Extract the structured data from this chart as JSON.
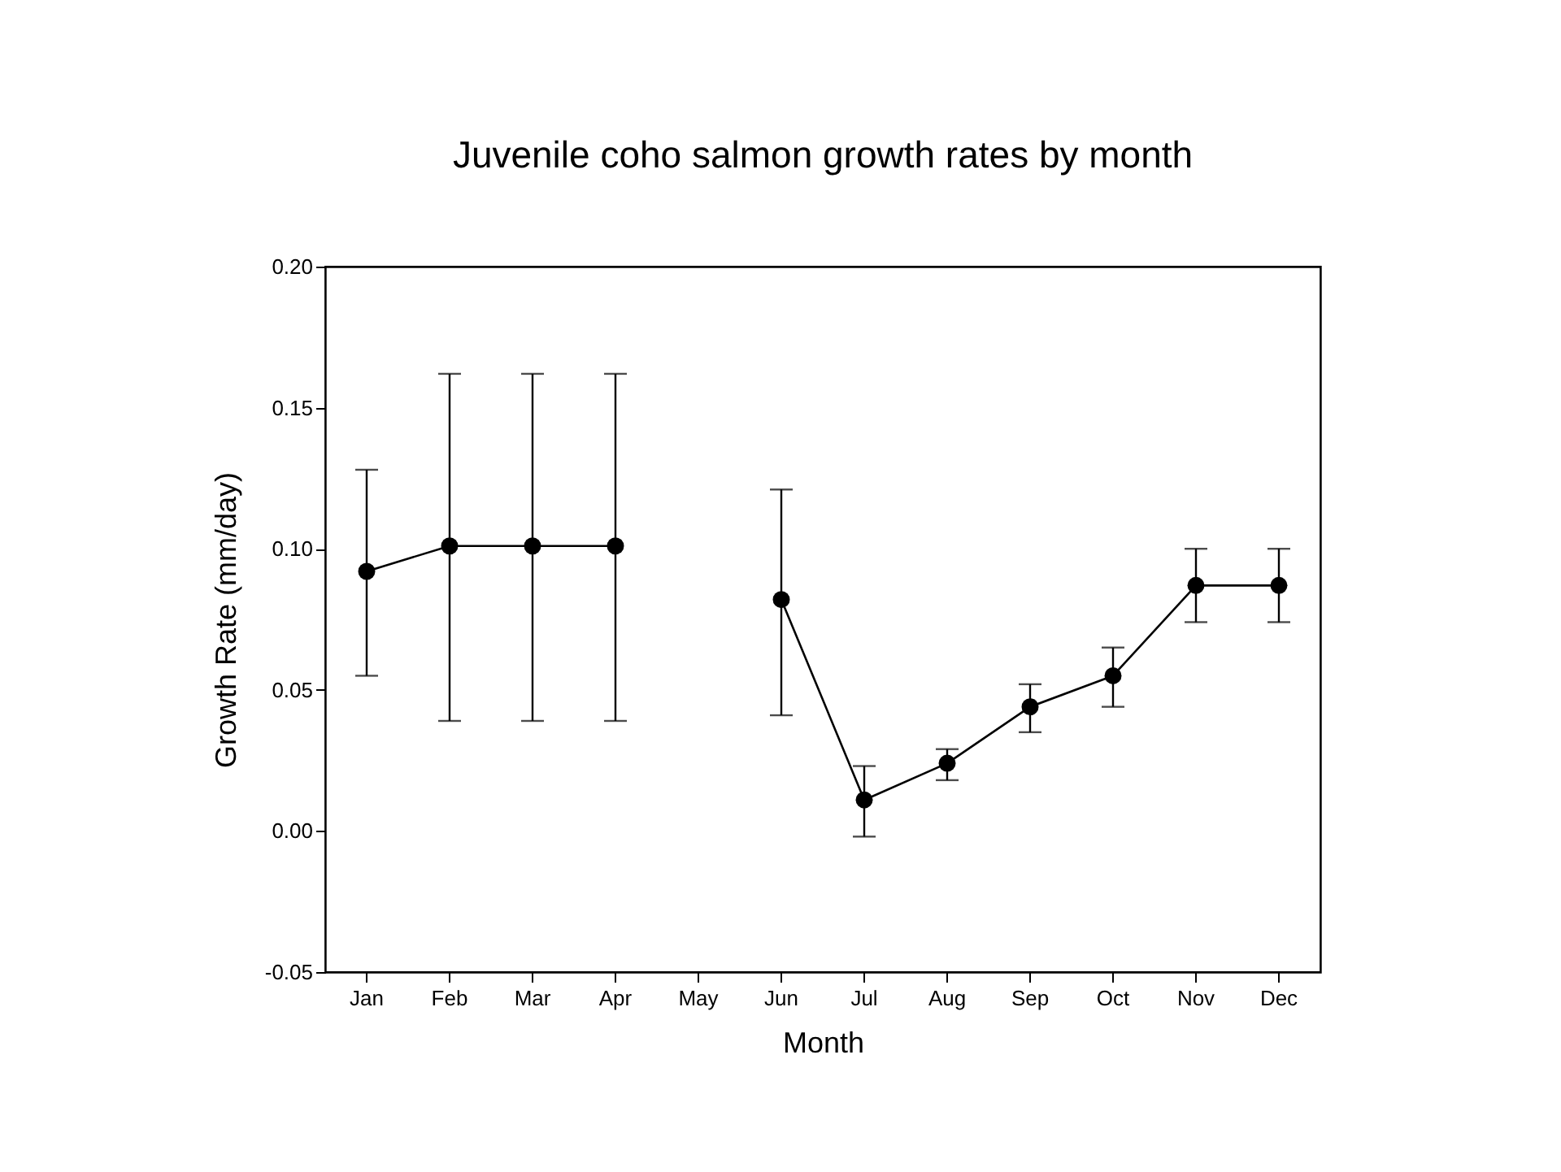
{
  "chart_data": {
    "type": "line",
    "title": "Juvenile coho salmon growth rates by month",
    "xlabel": "Month",
    "ylabel": "Growth Rate (mm/day)",
    "categories": [
      "Jan",
      "Feb",
      "Mar",
      "Apr",
      "May",
      "Jun",
      "Jul",
      "Aug",
      "Sep",
      "Oct",
      "Nov",
      "Dec"
    ],
    "color": "#000000",
    "values": [
      0.092,
      0.101,
      0.101,
      0.101,
      null,
      0.082,
      0.011,
      0.024,
      0.044,
      0.055,
      0.087,
      0.087
    ],
    "errors": [
      [
        0.055,
        0.128
      ],
      [
        0.039,
        0.162
      ],
      [
        0.039,
        0.162
      ],
      [
        0.039,
        0.162
      ],
      null,
      [
        0.041,
        0.121
      ],
      [
        -0.002,
        0.023
      ],
      [
        0.018,
        0.029
      ],
      [
        0.035,
        0.052
      ],
      [
        0.044,
        0.065
      ],
      [
        0.074,
        0.1
      ],
      [
        0.074,
        0.1
      ]
    ],
    "ylim": [
      -0.05,
      0.2
    ],
    "yticks": [
      {
        "value": -0.05,
        "label": "-0.05"
      },
      {
        "value": 0,
        "label": "0.00"
      },
      {
        "value": 0.05,
        "label": "0.05"
      },
      {
        "value": 0.1,
        "label": "0.10"
      },
      {
        "value": 0.15,
        "label": "0.15"
      },
      {
        "value": 0.2,
        "label": "0.20"
      }
    ],
    "marker": "circle",
    "line_style": "solid"
  }
}
